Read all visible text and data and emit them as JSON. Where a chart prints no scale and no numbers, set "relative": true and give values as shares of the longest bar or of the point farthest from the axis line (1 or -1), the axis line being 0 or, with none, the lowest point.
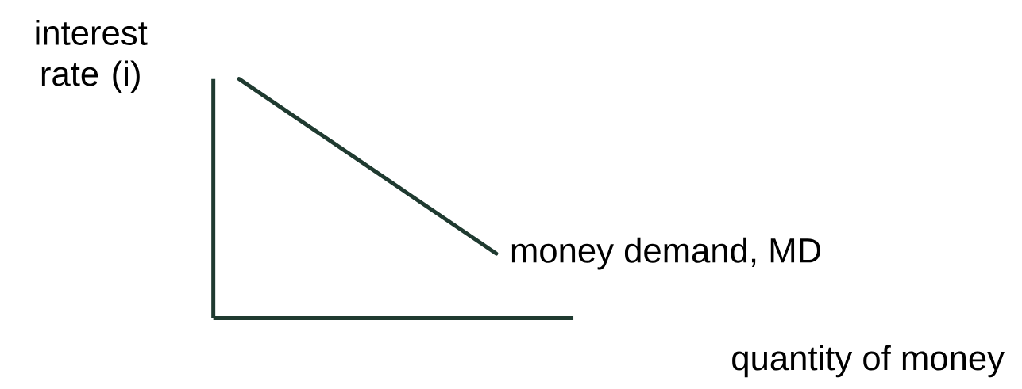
{
  "chart_data": {
    "type": "line",
    "relative": true,
    "xlabel": "quantity of money",
    "ylabel": "interest rate (i)",
    "categories": [
      null,
      null,
      null,
      null,
      null,
      null,
      null,
      null,
      null,
      null,
      null,
      null,
      null,
      null,
      null
    ],
    "series": [
      {
        "name": "money demand, MD",
        "color": "#1f3a30",
        "values": [
          null,
          1,
          null,
          null,
          null,
          null,
          null,
          null,
          null,
          null,
          null,
          0.27,
          null,
          null,
          null
        ]
      }
    ]
  }
}
